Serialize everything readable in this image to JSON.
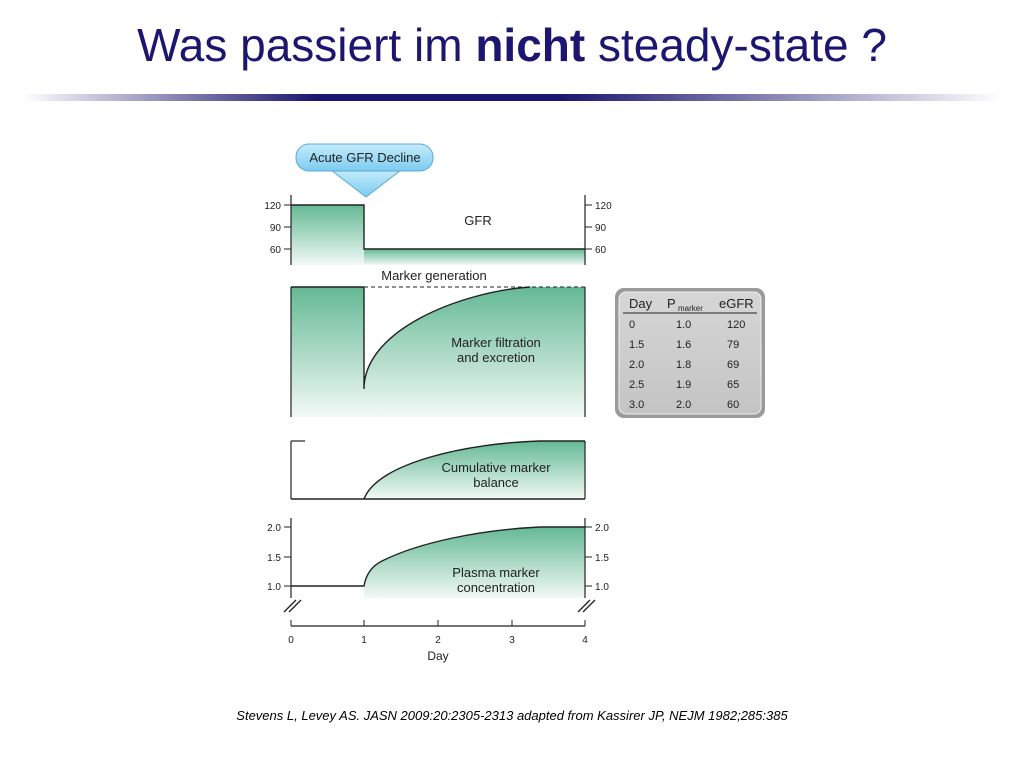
{
  "title": {
    "prefix": "Was passiert im ",
    "emphasis": "nicht",
    "suffix": " steady-state ?"
  },
  "figure": {
    "callout": "Acute GFR Decline",
    "panels": {
      "gfr": {
        "label": "GFR",
        "ticks_left": [
          "120",
          "90",
          "60"
        ],
        "ticks_right": [
          "120",
          "90",
          "60"
        ],
        "values": {
          "before": 120,
          "after": 60
        }
      },
      "marker_generation": {
        "label": "Marker generation"
      },
      "filtration": {
        "label_line1": "Marker filtration",
        "label_line2": "and excretion"
      },
      "balance": {
        "label_line1": "Cumulative marker",
        "label_line2": "balance"
      },
      "plasma": {
        "label_line1": "Plasma marker",
        "label_line2": "concentration",
        "ticks_left": [
          "2.0",
          "1.5",
          "1.0"
        ],
        "ticks_right": [
          "2.0",
          "1.5",
          "1.0"
        ]
      }
    },
    "x_axis": {
      "label": "Day",
      "ticks": [
        "0",
        "1",
        "2",
        "3",
        "4"
      ]
    },
    "table": {
      "header": {
        "day": "Day",
        "p": "P",
        "p_sub": "marker",
        "egfr": "eGFR"
      },
      "rows": [
        {
          "day": "0",
          "p": "1.0",
          "egfr": "120"
        },
        {
          "day": "1.5",
          "p": "1.6",
          "egfr": "79"
        },
        {
          "day": "2.0",
          "p": "1.8",
          "egfr": "69"
        },
        {
          "day": "2.5",
          "p": "1.9",
          "egfr": "65"
        },
        {
          "day": "3.0",
          "p": "2.0",
          "egfr": "60"
        }
      ]
    },
    "colors": {
      "fill_green": "#77c4a3",
      "callout_blue": "#8cd2f2",
      "line": "#222222"
    }
  },
  "citation": "Stevens L, Levey AS. JASN 2009:20:2305-2313 adapted from Kassirer JP, NEJM 1982;285:385"
}
